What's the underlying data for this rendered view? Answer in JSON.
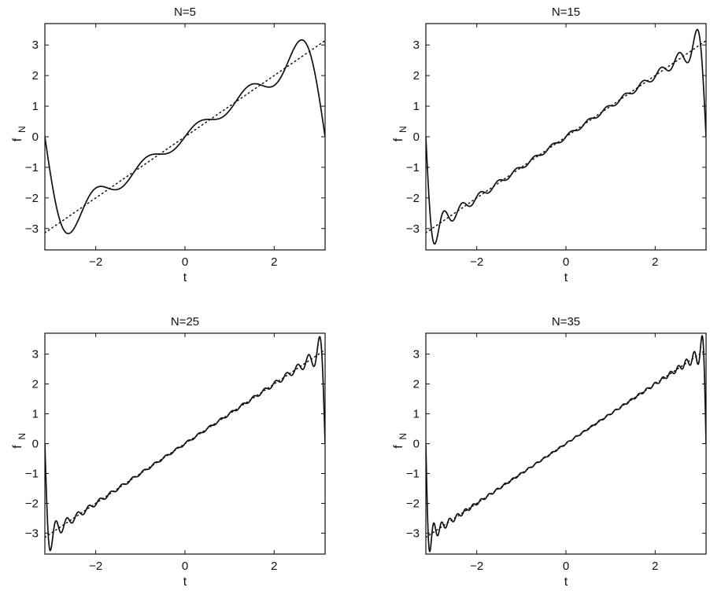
{
  "figure": {
    "panel_titles": [
      "N=5",
      "N=15",
      "N=25",
      "N=35"
    ]
  },
  "chart_data": [
    {
      "type": "line",
      "title": "N=5",
      "xlabel": "t",
      "ylabel": "f",
      "ylabel_subscript": "N",
      "xlim": [
        -3.1416,
        3.1416
      ],
      "ylim": [
        -3.7,
        3.7
      ],
      "xticks": [
        -2,
        0,
        2
      ],
      "xtick_labels": [
        "−2",
        "0",
        "2"
      ],
      "yticks": [
        -3,
        -2,
        -1,
        0,
        1,
        2,
        3
      ],
      "ytick_labels": [
        "−3",
        "−2",
        "−1",
        "0",
        "1",
        "2",
        "3"
      ],
      "grid": false,
      "fourier_terms": 5,
      "series": [
        {
          "style": "solid",
          "function": "fourier_sawtooth"
        },
        {
          "style": "dotted",
          "function": "y = t"
        }
      ]
    },
    {
      "type": "line",
      "title": "N=15",
      "xlabel": "t",
      "ylabel": "f",
      "ylabel_subscript": "N",
      "xlim": [
        -3.1416,
        3.1416
      ],
      "ylim": [
        -3.7,
        3.7
      ],
      "xticks": [
        -2,
        0,
        2
      ],
      "xtick_labels": [
        "−2",
        "0",
        "2"
      ],
      "yticks": [
        -3,
        -2,
        -1,
        0,
        1,
        2,
        3
      ],
      "ytick_labels": [
        "−3",
        "−2",
        "−1",
        "0",
        "1",
        "2",
        "3"
      ],
      "grid": false,
      "fourier_terms": 15,
      "series": [
        {
          "style": "solid",
          "function": "fourier_sawtooth"
        },
        {
          "style": "dotted",
          "function": "y = t"
        }
      ]
    },
    {
      "type": "line",
      "title": "N=25",
      "xlabel": "t",
      "ylabel": "f",
      "ylabel_subscript": "N",
      "xlim": [
        -3.1416,
        3.1416
      ],
      "ylim": [
        -3.7,
        3.7
      ],
      "xticks": [
        -2,
        0,
        2
      ],
      "xtick_labels": [
        "−2",
        "0",
        "2"
      ],
      "yticks": [
        -3,
        -2,
        -1,
        0,
        1,
        2,
        3
      ],
      "ytick_labels": [
        "−3",
        "−2",
        "−1",
        "0",
        "1",
        "2",
        "3"
      ],
      "grid": false,
      "fourier_terms": 25,
      "series": [
        {
          "style": "solid",
          "function": "fourier_sawtooth"
        },
        {
          "style": "dotted",
          "function": "y = t"
        }
      ]
    },
    {
      "type": "line",
      "title": "N=35",
      "xlabel": "t",
      "ylabel": "f",
      "ylabel_subscript": "N",
      "xlim": [
        -3.1416,
        3.1416
      ],
      "ylim": [
        -3.7,
        3.7
      ],
      "xticks": [
        -2,
        0,
        2
      ],
      "xtick_labels": [
        "−2",
        "0",
        "2"
      ],
      "yticks": [
        -3,
        -2,
        -1,
        0,
        1,
        2,
        3
      ],
      "ytick_labels": [
        "−3",
        "−2",
        "−1",
        "0",
        "1",
        "2",
        "3"
      ],
      "grid": false,
      "fourier_terms": 35,
      "series": [
        {
          "style": "solid",
          "function": "fourier_sawtooth"
        },
        {
          "style": "dotted",
          "function": "y = t"
        }
      ]
    }
  ]
}
